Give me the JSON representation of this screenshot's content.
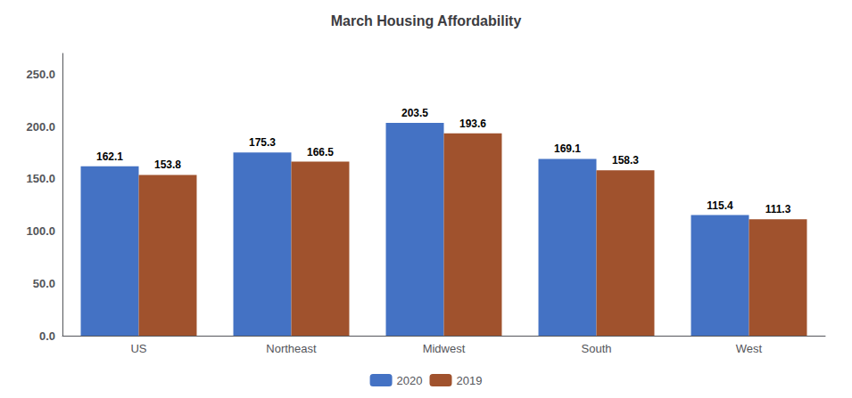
{
  "chart_data": {
    "type": "bar",
    "title": "March Housing Affordability",
    "categories": [
      "US",
      "Northeast",
      "Midwest",
      "South",
      "West"
    ],
    "series": [
      {
        "name": "2020",
        "color": "#4472C4",
        "values": [
          162.1,
          175.3,
          203.5,
          169.1,
          115.4
        ]
      },
      {
        "name": "2019",
        "color": "#A0522D",
        "values": [
          153.8,
          166.5,
          193.6,
          158.3,
          111.3
        ]
      }
    ],
    "ylim": [
      0,
      270
    ],
    "yticks": [
      {
        "value": 0,
        "label": "0.0"
      },
      {
        "value": 50,
        "label": "50.0"
      },
      {
        "value": 100,
        "label": "100.0"
      },
      {
        "value": 150,
        "label": "150.0"
      },
      {
        "value": 200,
        "label": "200.0"
      },
      {
        "value": 250,
        "label": "250.0"
      }
    ],
    "grid": false,
    "legend": "bottom",
    "data_labels": true
  }
}
